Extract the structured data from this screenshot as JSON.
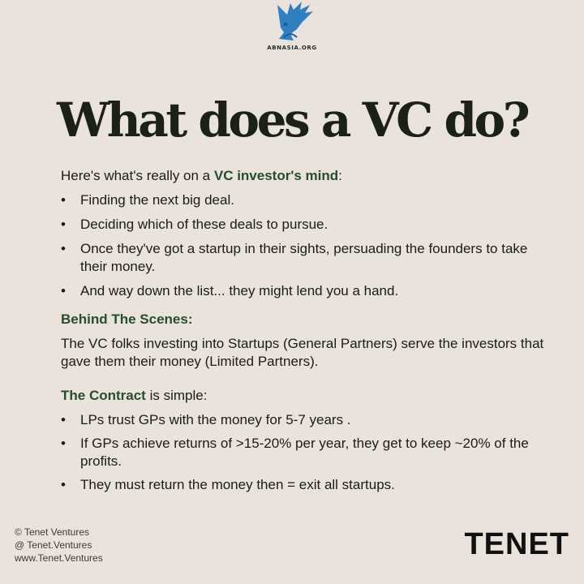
{
  "logo": {
    "text": "ABNASIA.ORG",
    "icon": "blue-bird-logo-icon",
    "color": "#2f7fc1"
  },
  "title": "What does a VC do?",
  "intro": {
    "prefix": "Here's what's really on a ",
    "highlight": "VC investor's mind",
    "suffix": ":"
  },
  "mind_list": [
    "Finding the next big deal.",
    "Deciding which of these deals to pursue.",
    "Once they've got a startup in their sights, persuading the founders to take their money.",
    "And way down the list... they might lend you a hand."
  ],
  "behind": {
    "heading": "Behind The Scenes:",
    "text": "The VC folks investing into Startups (General Partners) serve the investors that gave them their money (Limited Partners)."
  },
  "contract": {
    "highlight": "The Contract",
    "suffix": " is simple:"
  },
  "contract_list": [
    "LPs trust GPs with the money for 5-7 years .",
    "If GPs achieve returns of >15-20% per year, they get to keep ~20% of the profits.",
    "They must return the money then = exit all startups."
  ],
  "footer": {
    "line1": "© Tenet Ventures",
    "line2": "@ Tenet.Ventures",
    "line3": "www.Tenet.Ventures"
  },
  "brand": "TENET",
  "colors": {
    "background": "#e9e3dc",
    "accent": "#264d30",
    "text": "#1b1b1b"
  }
}
